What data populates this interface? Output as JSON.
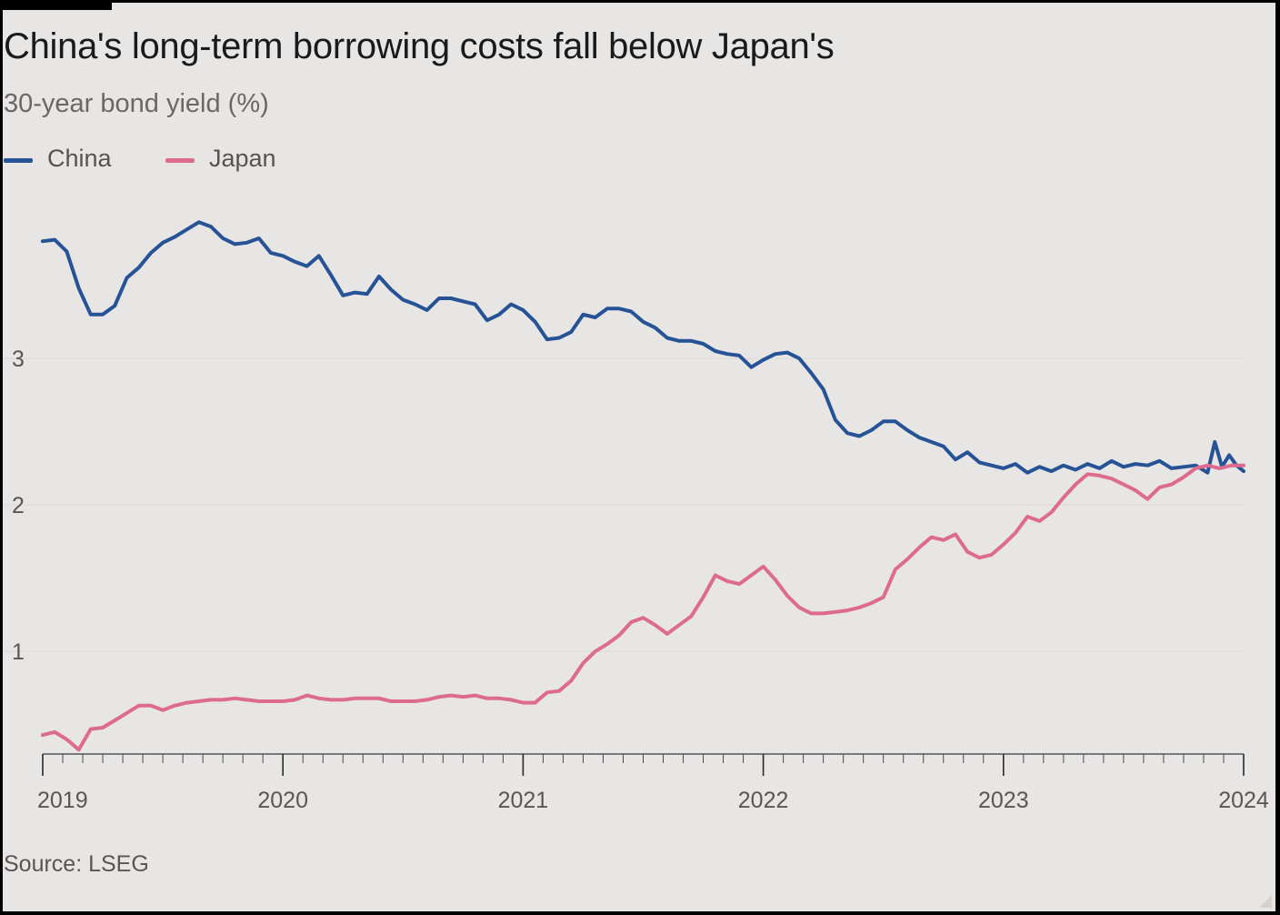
{
  "header": {
    "title": "China's long-term borrowing costs fall below Japan's",
    "subtitle": "30-year bond yield (%)"
  },
  "legend": {
    "items": [
      {
        "label": "China",
        "color": "#265296"
      },
      {
        "label": "Japan",
        "color": "#dd6b8f"
      }
    ]
  },
  "footer": {
    "source": "Source: LSEG"
  },
  "colors": {
    "background": "#e8e6e5",
    "grid": "#dcd9d7",
    "axis": "#3a3a3a"
  },
  "chart_data": {
    "type": "line",
    "title": "China's long-term borrowing costs fall below Japan's",
    "subtitle": "30-year bond yield (%)",
    "xlabel": "",
    "ylabel": "30-year bond yield (%)",
    "xlim": [
      2019.0,
      2024.0
    ],
    "ylim": [
      0.3,
      4.0
    ],
    "yticks": [
      1,
      2,
      3
    ],
    "xticks": [
      2019,
      2020,
      2021,
      2022,
      2023,
      2024
    ],
    "grid": true,
    "legend_position": "top-left",
    "source": "Source: LSEG",
    "series": [
      {
        "name": "China",
        "color": "#265296",
        "x": [
          2019.0,
          2019.05,
          2019.1,
          2019.15,
          2019.2,
          2019.25,
          2019.3,
          2019.35,
          2019.4,
          2019.45,
          2019.5,
          2019.55,
          2019.6,
          2019.65,
          2019.7,
          2019.75,
          2019.8,
          2019.85,
          2019.9,
          2019.95,
          2020.0,
          2020.05,
          2020.1,
          2020.15,
          2020.2,
          2020.25,
          2020.3,
          2020.35,
          2020.4,
          2020.45,
          2020.5,
          2020.55,
          2020.6,
          2020.65,
          2020.7,
          2020.75,
          2020.8,
          2020.85,
          2020.9,
          2020.95,
          2021.0,
          2021.05,
          2021.1,
          2021.15,
          2021.2,
          2021.25,
          2021.3,
          2021.35,
          2021.4,
          2021.45,
          2021.5,
          2021.55,
          2021.6,
          2021.65,
          2021.7,
          2021.75,
          2021.8,
          2021.85,
          2021.9,
          2021.95,
          2022.0,
          2022.05,
          2022.1,
          2022.15,
          2022.2,
          2022.25,
          2022.3,
          2022.35,
          2022.4,
          2022.45,
          2022.5,
          2022.55,
          2022.6,
          2022.65,
          2022.7,
          2022.75,
          2022.8,
          2022.85,
          2022.9,
          2022.95,
          2023.0,
          2023.05,
          2023.1,
          2023.15,
          2023.2,
          2023.25,
          2023.3,
          2023.35,
          2023.4,
          2023.45,
          2023.5,
          2023.55,
          2023.6,
          2023.65,
          2023.7,
          2023.75,
          2023.8,
          2023.85,
          2023.88,
          2023.91,
          2023.94,
          2023.97,
          2024.0
        ],
        "values": [
          3.8,
          3.81,
          3.73,
          3.48,
          3.3,
          3.3,
          3.36,
          3.55,
          3.62,
          3.72,
          3.79,
          3.83,
          3.88,
          3.93,
          3.9,
          3.82,
          3.78,
          3.79,
          3.82,
          3.72,
          3.7,
          3.66,
          3.63,
          3.7,
          3.57,
          3.43,
          3.45,
          3.44,
          3.56,
          3.47,
          3.4,
          3.37,
          3.33,
          3.41,
          3.41,
          3.39,
          3.37,
          3.26,
          3.3,
          3.37,
          3.33,
          3.25,
          3.13,
          3.14,
          3.18,
          3.3,
          3.28,
          3.34,
          3.34,
          3.32,
          3.25,
          3.21,
          3.14,
          3.12,
          3.12,
          3.1,
          3.05,
          3.03,
          3.02,
          2.94,
          2.99,
          3.03,
          3.04,
          3.0,
          2.9,
          2.79,
          2.58,
          2.49,
          2.47,
          2.51,
          2.57,
          2.57,
          2.51,
          2.46,
          2.43,
          2.4,
          2.31,
          2.36,
          2.29,
          2.27,
          2.25,
          2.28,
          2.22,
          2.26,
          2.23,
          2.27,
          2.24,
          2.28,
          2.25,
          2.3,
          2.26,
          2.28,
          2.27,
          2.3,
          2.25,
          2.26,
          2.27,
          2.22,
          2.43,
          2.26,
          2.34,
          2.27,
          2.23
        ]
      },
      {
        "name": "Japan",
        "color": "#dd6b8f",
        "x": [
          2019.0,
          2019.05,
          2019.1,
          2019.15,
          2019.2,
          2019.25,
          2019.3,
          2019.35,
          2019.4,
          2019.45,
          2019.5,
          2019.55,
          2019.6,
          2019.65,
          2019.7,
          2019.75,
          2019.8,
          2019.85,
          2019.9,
          2019.95,
          2020.0,
          2020.05,
          2020.1,
          2020.15,
          2020.2,
          2020.25,
          2020.3,
          2020.35,
          2020.4,
          2020.45,
          2020.5,
          2020.55,
          2020.6,
          2020.65,
          2020.7,
          2020.75,
          2020.8,
          2020.85,
          2020.9,
          2020.95,
          2021.0,
          2021.05,
          2021.1,
          2021.15,
          2021.2,
          2021.25,
          2021.3,
          2021.35,
          2021.4,
          2021.45,
          2021.5,
          2021.55,
          2021.6,
          2021.65,
          2021.7,
          2021.75,
          2021.8,
          2021.85,
          2021.9,
          2021.95,
          2022.0,
          2022.05,
          2022.1,
          2022.15,
          2022.2,
          2022.25,
          2022.3,
          2022.35,
          2022.4,
          2022.45,
          2022.5,
          2022.55,
          2022.6,
          2022.65,
          2022.7,
          2022.75,
          2022.8,
          2022.85,
          2022.9,
          2022.95,
          2023.0,
          2023.05,
          2023.1,
          2023.15,
          2023.2,
          2023.25,
          2023.3,
          2023.35,
          2023.4,
          2023.45,
          2023.5,
          2023.55,
          2023.6,
          2023.65,
          2023.7,
          2023.75,
          2023.8,
          2023.85,
          2023.9,
          2023.95,
          2024.0
        ],
        "values": [
          0.43,
          0.45,
          0.4,
          0.33,
          0.47,
          0.48,
          0.53,
          0.58,
          0.63,
          0.63,
          0.6,
          0.63,
          0.65,
          0.66,
          0.67,
          0.67,
          0.68,
          0.67,
          0.66,
          0.66,
          0.66,
          0.67,
          0.7,
          0.68,
          0.67,
          0.67,
          0.68,
          0.68,
          0.68,
          0.66,
          0.66,
          0.66,
          0.67,
          0.69,
          0.7,
          0.69,
          0.7,
          0.68,
          0.68,
          0.67,
          0.65,
          0.65,
          0.72,
          0.73,
          0.8,
          0.92,
          1.0,
          1.05,
          1.11,
          1.2,
          1.23,
          1.18,
          1.12,
          1.18,
          1.24,
          1.37,
          1.52,
          1.48,
          1.46,
          1.52,
          1.58,
          1.49,
          1.38,
          1.3,
          1.26,
          1.26,
          1.27,
          1.28,
          1.3,
          1.33,
          1.37,
          1.56,
          1.63,
          1.71,
          1.78,
          1.76,
          1.8,
          1.68,
          1.64,
          1.66,
          1.73,
          1.81,
          1.92,
          1.89,
          1.95,
          2.05,
          2.14,
          2.21,
          2.2,
          2.18,
          2.14,
          2.1,
          2.04,
          2.12,
          2.14,
          2.19,
          2.25,
          2.27,
          2.25,
          2.27,
          2.27
        ]
      }
    ]
  }
}
